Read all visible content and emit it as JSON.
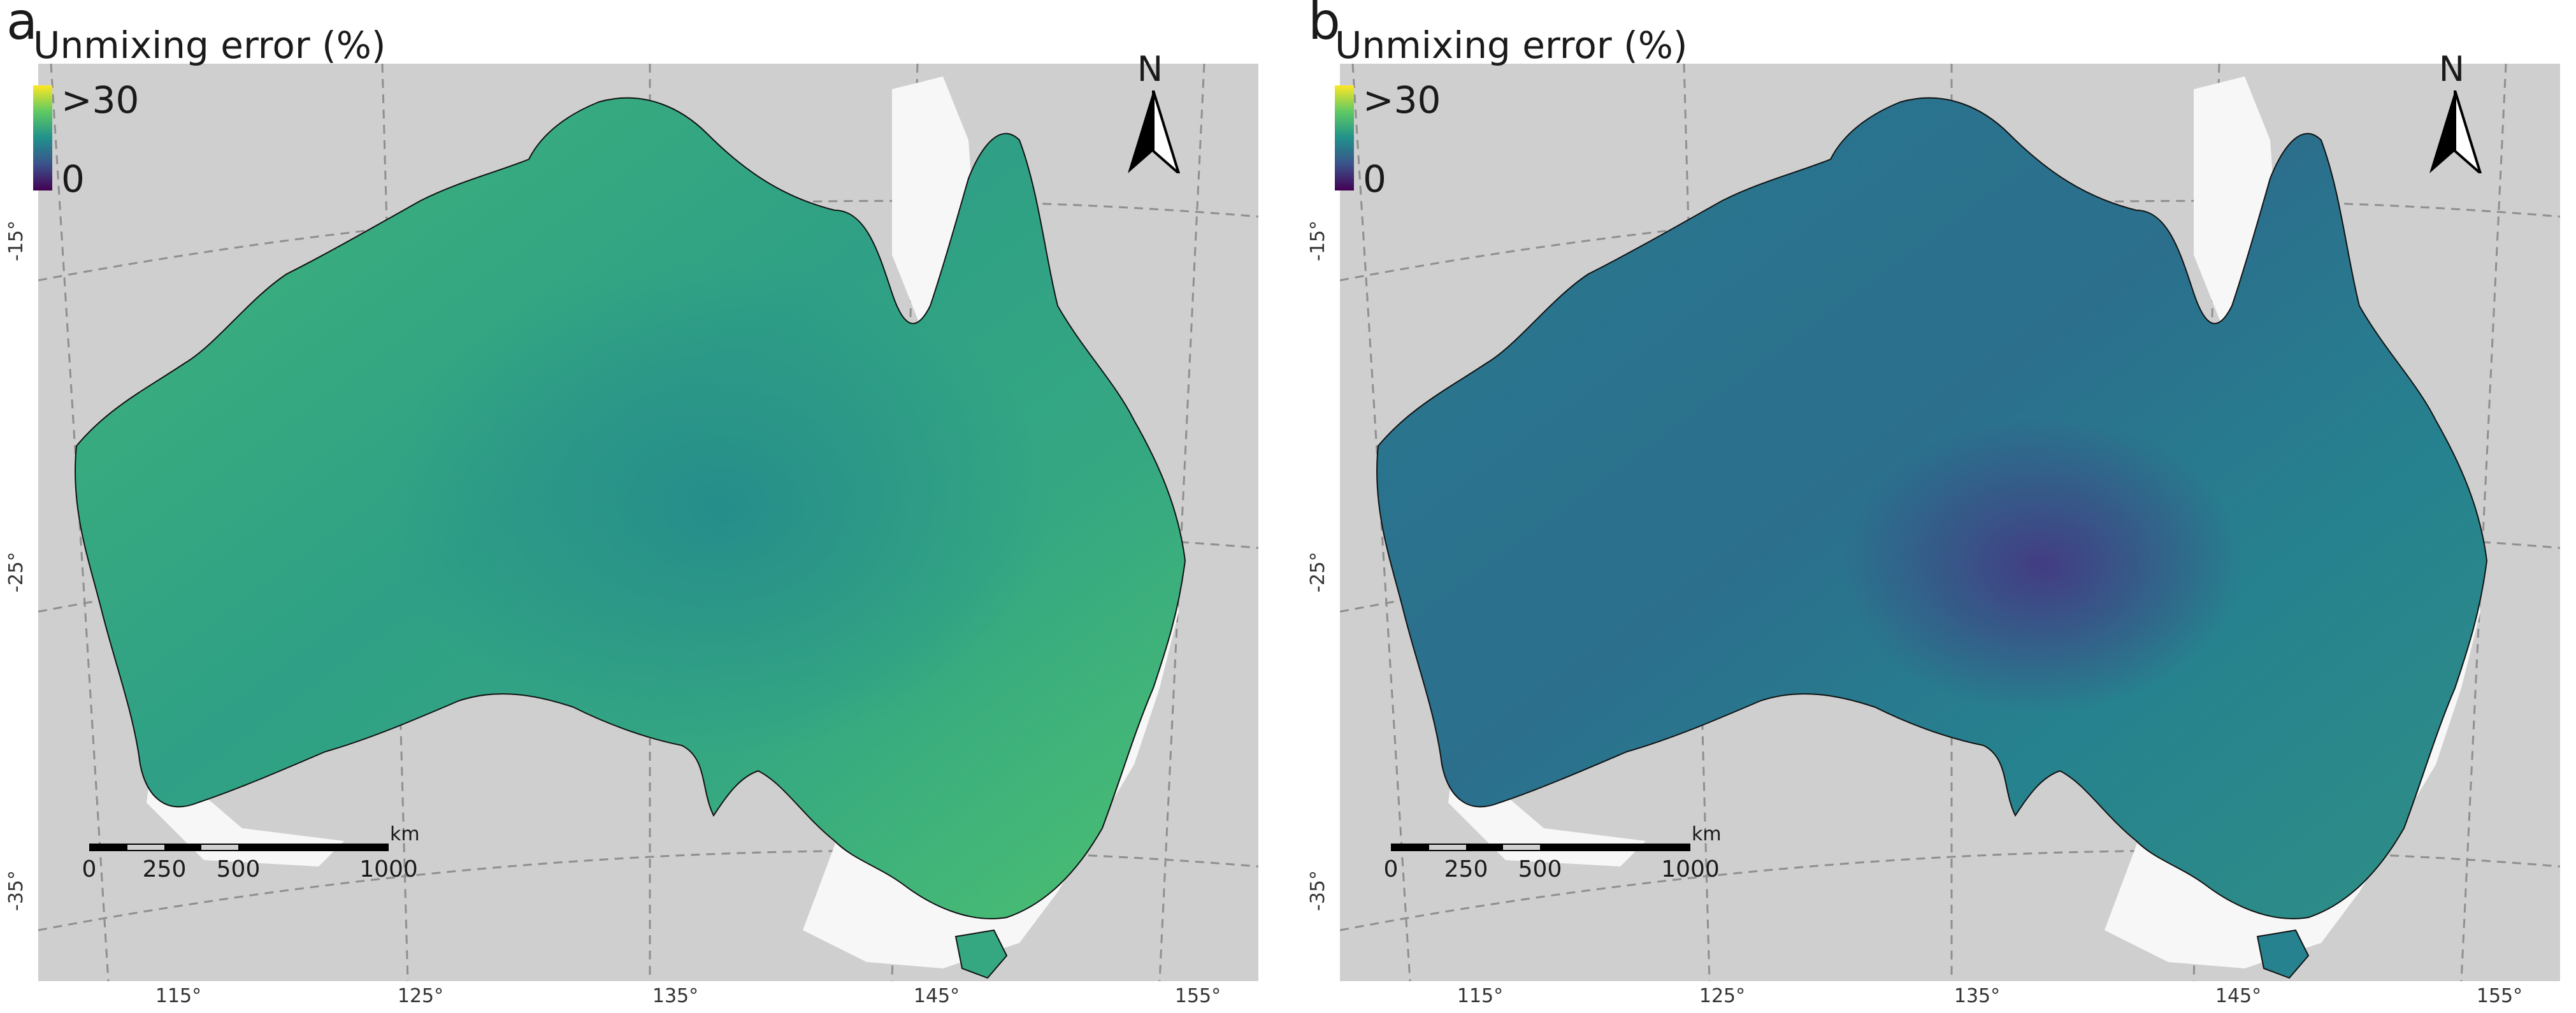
{
  "colors": {
    "ocean": "#cfcfcf",
    "outside_land": "#f7f7f7",
    "palette": [
      "#440154",
      "#3b528b",
      "#21918c",
      "#5ec962",
      "#fde725"
    ]
  },
  "panels": [
    {
      "letter": "a",
      "legend_title": "Unmixing error (%)",
      "legend_max": ">30",
      "legend_min": "0",
      "north_label": "N",
      "scale_unit": "km",
      "scale_labels": [
        "0",
        "250",
        "500",
        "1000"
      ],
      "lat_labels": [
        "-15°",
        "-25°",
        "-35°"
      ],
      "lon_labels": [
        "115°",
        "125°",
        "135°",
        "145°",
        "155°"
      ],
      "fill_colors": [
        "#3fb47a",
        "#2fa085",
        "#35a882",
        "#4cc070"
      ]
    },
    {
      "letter": "b",
      "legend_title": "Unmixing error (%)",
      "legend_max": ">30",
      "legend_min": "0",
      "north_label": "N",
      "scale_unit": "km",
      "scale_labels": [
        "0",
        "250",
        "500",
        "1000"
      ],
      "lat_labels": [
        "-15°",
        "-25°",
        "-35°"
      ],
      "lon_labels": [
        "115°",
        "125°",
        "135°",
        "145°",
        "155°"
      ],
      "fill_colors": [
        "#2a788e",
        "#2b6f8d",
        "#26828e",
        "#2f8f86"
      ]
    }
  ]
}
